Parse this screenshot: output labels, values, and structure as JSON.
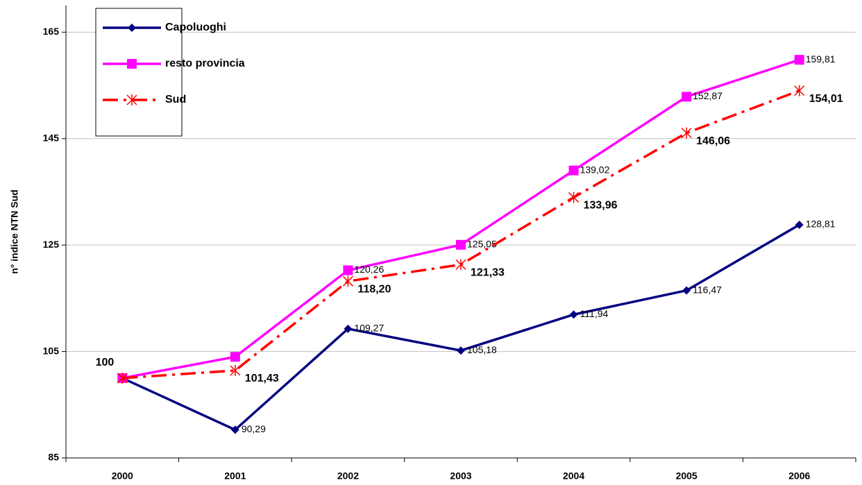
{
  "chart_data": {
    "type": "line",
    "y_label": "n° indice NTN Sud",
    "categories": [
      "2000",
      "2001",
      "2002",
      "2003",
      "2004",
      "2005",
      "2006"
    ],
    "series": [
      {
        "name": "Capoluoghi",
        "color": "#000080",
        "marker": "diamond",
        "dash": false,
        "bold_labels": false,
        "values": [
          100,
          90.29,
          109.27,
          105.18,
          111.94,
          116.47,
          128.81
        ],
        "value_labels": [
          null,
          "90,29",
          "109,27",
          "105,18",
          "111,94",
          "116,47",
          "128,81"
        ]
      },
      {
        "name": "resto provincia",
        "color": "#ff00ff",
        "marker": "square",
        "dash": false,
        "bold_labels": false,
        "values": [
          100,
          104,
          120.26,
          125.05,
          139.02,
          152.87,
          159.81
        ],
        "value_labels": [
          null,
          null,
          "120,26",
          "125,05",
          "139,02",
          "152,87",
          "159,81"
        ]
      },
      {
        "name": "Sud",
        "color": "#ff0000",
        "marker": "asterisk",
        "dash": true,
        "bold_labels": true,
        "values": [
          100,
          101.43,
          118.2,
          121.33,
          133.96,
          146.06,
          154.01
        ],
        "value_labels": [
          "100",
          "101,43",
          "118,20",
          "121,33",
          "133,96",
          "146,06",
          "154,01"
        ]
      }
    ],
    "ylim": [
      85,
      170
    ],
    "yticks": [
      85,
      105,
      125,
      145,
      165
    ],
    "grid": true
  }
}
